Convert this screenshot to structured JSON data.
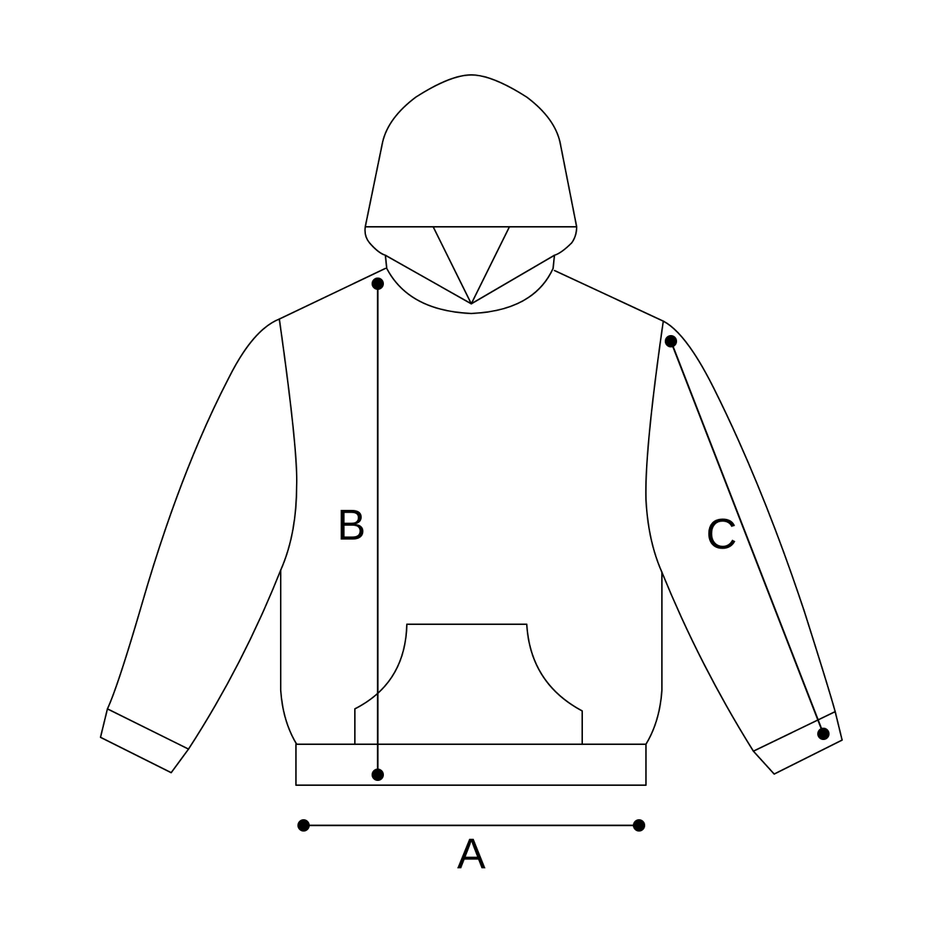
{
  "labels": {
    "a": "A",
    "b": "B",
    "c": "C"
  },
  "colors": {
    "stroke": "#000000",
    "background": "#ffffff"
  }
}
